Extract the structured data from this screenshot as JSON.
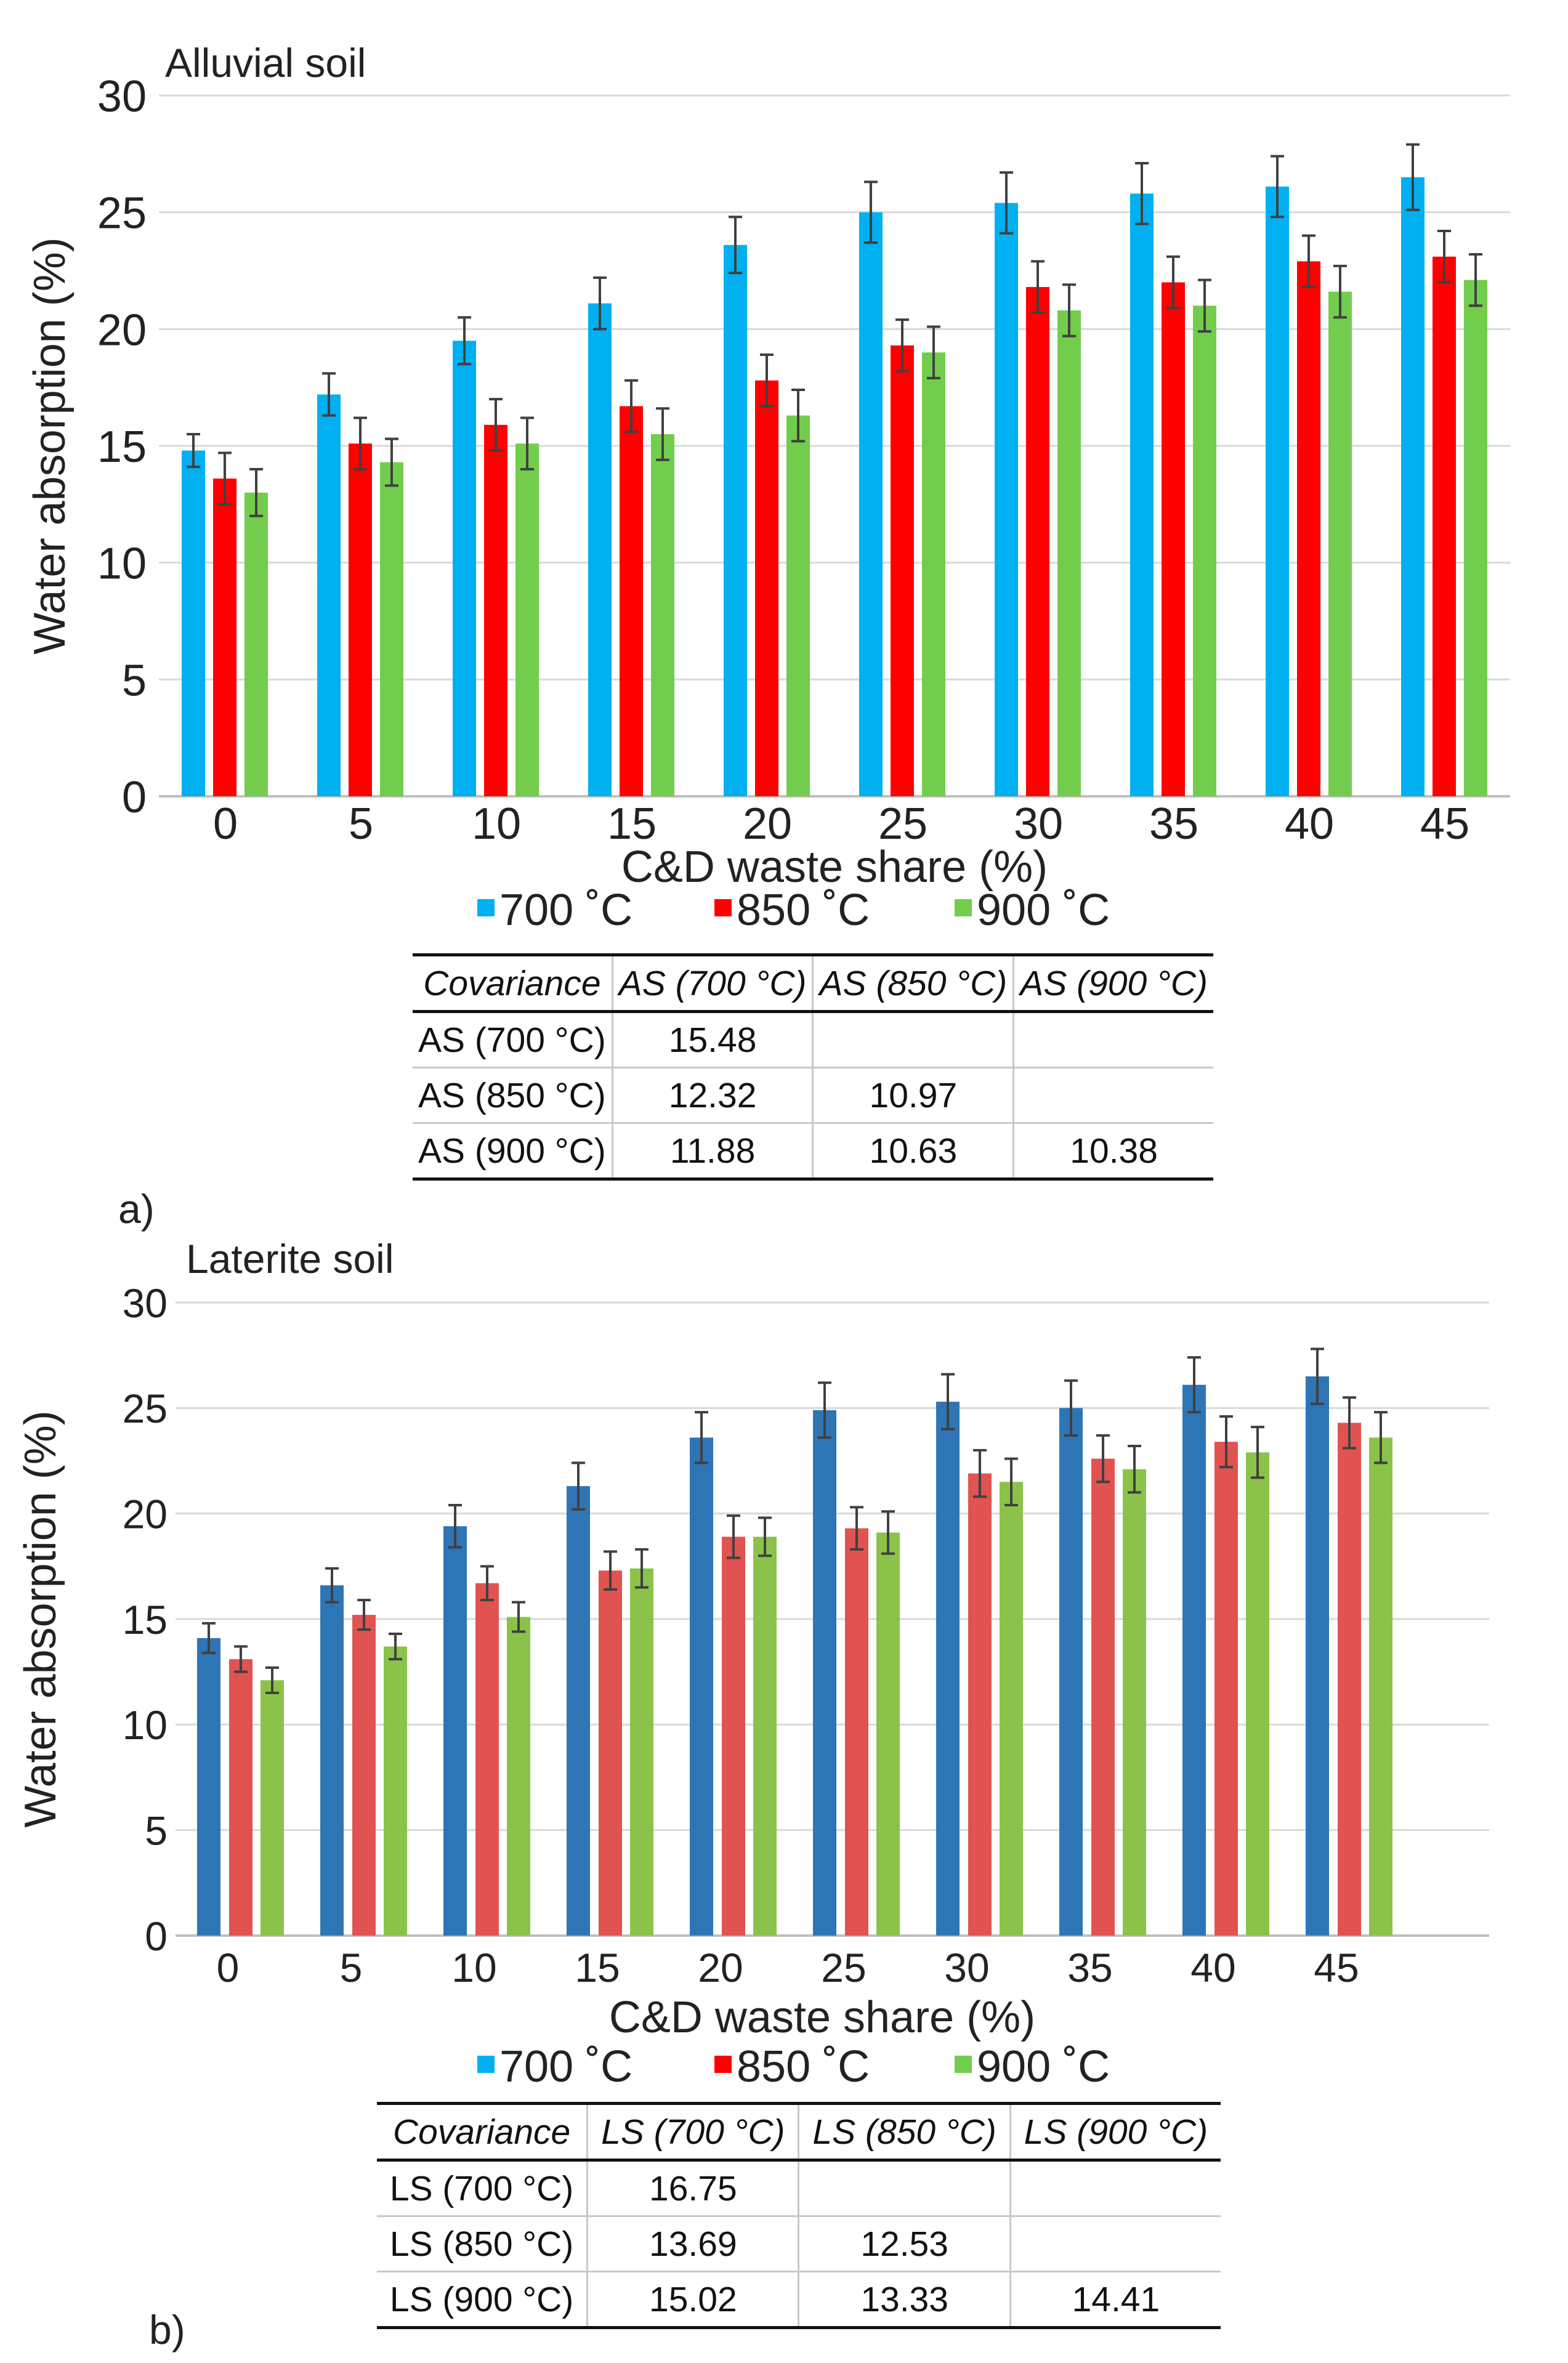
{
  "chart_data": [
    {
      "type": "bar",
      "title": "Alluvial soil",
      "panel_label": "a)",
      "xlabel": "C&D waste share (%)",
      "ylabel": "Water absorption (%)",
      "categories": [
        "0",
        "5",
        "10",
        "15",
        "20",
        "25",
        "30",
        "35",
        "40",
        "45"
      ],
      "ylim": [
        0,
        30
      ],
      "yticks": [
        "0",
        "5",
        "10",
        "15",
        "20",
        "25",
        "30"
      ],
      "legend_position": "bottom",
      "series": [
        {
          "name": "700 ˚C",
          "color": "#00b0f0",
          "values": [
            14.8,
            17.2,
            19.5,
            21.1,
            23.6,
            25.0,
            25.4,
            25.8,
            26.1,
            26.5
          ],
          "errors": [
            0.7,
            0.9,
            1.0,
            1.1,
            1.2,
            1.3,
            1.3,
            1.3,
            1.3,
            1.4
          ]
        },
        {
          "name": "850 ˚C",
          "color": "#ff0000",
          "values": [
            13.6,
            15.1,
            15.9,
            16.7,
            17.8,
            19.3,
            21.8,
            22.0,
            22.9,
            23.1
          ],
          "errors": [
            1.1,
            1.1,
            1.1,
            1.1,
            1.1,
            1.1,
            1.1,
            1.1,
            1.1,
            1.1
          ]
        },
        {
          "name": "900 ˚C",
          "color": "#72cd4c",
          "values": [
            13.0,
            14.3,
            15.1,
            15.5,
            16.3,
            19.0,
            20.8,
            21.0,
            21.6,
            22.1
          ],
          "errors": [
            1.0,
            1.0,
            1.1,
            1.1,
            1.1,
            1.1,
            1.1,
            1.1,
            1.1,
            1.1
          ]
        }
      ],
      "table": {
        "header": [
          "Covariance",
          "AS (700 °C)",
          "AS (850 °C)",
          "AS (900 °C)"
        ],
        "rows": [
          [
            "AS (700 °C)",
            "15.48",
            "",
            ""
          ],
          [
            "AS (850 °C)",
            "12.32",
            "10.97",
            ""
          ],
          [
            "AS (900 °C)",
            "11.88",
            "10.63",
            "10.38"
          ]
        ]
      }
    },
    {
      "type": "bar",
      "title": "Laterite soil",
      "panel_label": "b)",
      "xlabel": "C&D waste share (%)",
      "ylabel": "Water absorption (%)",
      "categories": [
        "0",
        "5",
        "10",
        "15",
        "20",
        "25",
        "30",
        "35",
        "40",
        "45"
      ],
      "ylim": [
        0,
        30
      ],
      "yticks": [
        "0",
        "5",
        "10",
        "15",
        "20",
        "25",
        "30"
      ],
      "legend_position": "bottom",
      "series": [
        {
          "name": "700 ˚C",
          "color": "#2e75b6",
          "legend_color": "#00b0f0",
          "values": [
            14.1,
            16.6,
            19.4,
            21.3,
            23.6,
            24.9,
            25.3,
            25.0,
            26.1,
            26.5
          ],
          "errors": [
            0.7,
            0.8,
            1.0,
            1.1,
            1.2,
            1.3,
            1.3,
            1.3,
            1.3,
            1.3
          ]
        },
        {
          "name": "850 ˚C",
          "color": "#e05350",
          "legend_color": "#ff0000",
          "values": [
            13.1,
            15.2,
            16.7,
            17.3,
            18.9,
            19.3,
            21.9,
            22.6,
            23.4,
            24.3
          ],
          "errors": [
            0.6,
            0.7,
            0.8,
            0.9,
            1.0,
            1.0,
            1.1,
            1.1,
            1.2,
            1.2
          ]
        },
        {
          "name": "900 ˚C",
          "color": "#8bc34a",
          "legend_color": "#72cd4c",
          "values": [
            12.1,
            13.7,
            15.1,
            17.4,
            18.9,
            19.1,
            21.5,
            22.1,
            22.9,
            23.6
          ],
          "errors": [
            0.6,
            0.6,
            0.7,
            0.9,
            0.9,
            1.0,
            1.1,
            1.1,
            1.2,
            1.2
          ]
        }
      ],
      "table": {
        "header": [
          "Covariance",
          "LS (700 °C)",
          "LS (850 °C)",
          "LS (900 °C)"
        ],
        "rows": [
          [
            "LS (700 °C)",
            "16.75",
            "",
            ""
          ],
          [
            "LS (850 °C)",
            "13.69",
            "12.53",
            ""
          ],
          [
            "LS (900 °C)",
            "15.02",
            "13.33",
            "14.41"
          ]
        ]
      }
    }
  ]
}
